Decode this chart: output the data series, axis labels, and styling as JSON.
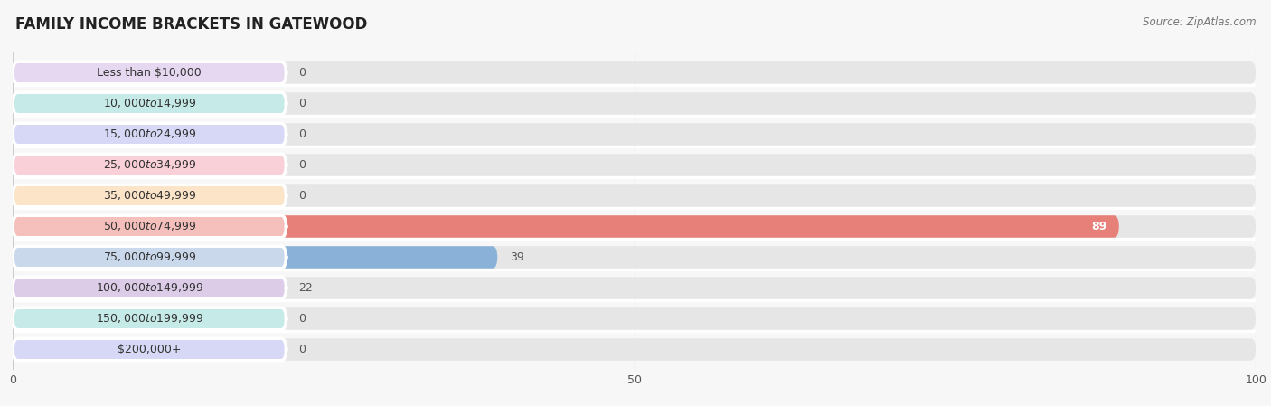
{
  "title": "FAMILY INCOME BRACKETS IN GATEWOOD",
  "source": "Source: ZipAtlas.com",
  "categories": [
    "Less than $10,000",
    "$10,000 to $14,999",
    "$15,000 to $24,999",
    "$25,000 to $34,999",
    "$35,000 to $49,999",
    "$50,000 to $74,999",
    "$75,000 to $99,999",
    "$100,000 to $149,999",
    "$150,000 to $199,999",
    "$200,000+"
  ],
  "values": [
    0,
    0,
    0,
    0,
    0,
    89,
    39,
    22,
    0,
    0
  ],
  "bar_colors": [
    "#c9b4d8",
    "#7dcec4",
    "#aab2e8",
    "#f59eae",
    "#f7c898",
    "#e8807a",
    "#8ab2d8",
    "#c4a6d4",
    "#7dcec4",
    "#aab2e8"
  ],
  "label_bg_colors": [
    "#e6d8f0",
    "#c6eae8",
    "#d6d8f5",
    "#fad0d8",
    "#fce4c8",
    "#f5c0bc",
    "#cad8ec",
    "#dccce8",
    "#c6eae8",
    "#d6d8f5"
  ],
  "xlim": [
    0,
    100
  ],
  "xticks": [
    0,
    50,
    100
  ],
  "bg_color": "#f7f7f7",
  "bar_bg_color": "#e6e6e6",
  "title_fontsize": 12,
  "label_fontsize": 9,
  "value_fontsize": 9
}
